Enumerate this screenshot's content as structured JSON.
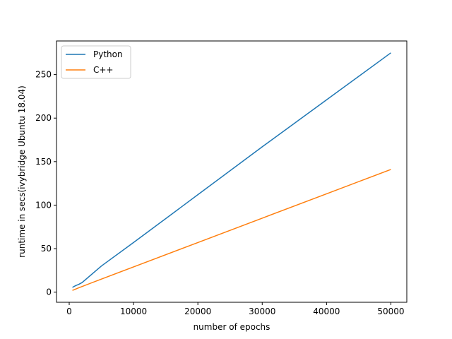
{
  "chart_data": {
    "type": "line",
    "x_label": "number of epochs",
    "y_label": "runtime in secs(ivybridge Ubuntu 18.04)",
    "x": [
      500,
      1000,
      1500,
      2000,
      5000,
      10000,
      20000,
      30000,
      40000,
      50000
    ],
    "series": [
      {
        "name": "Python",
        "color": "#1f77b4",
        "values": [
          5.5,
          7.5,
          9,
          11,
          30,
          57,
          112,
          167,
          221,
          275
        ]
      },
      {
        "name": "C++",
        "color": "#ff7f0e",
        "values": [
          2,
          3.5,
          5,
          6.5,
          15,
          29,
          57,
          85,
          113,
          141
        ]
      }
    ],
    "xlim": [
      -1975,
      52475
    ],
    "xticks": [
      0,
      10000,
      20000,
      30000,
      40000,
      50000
    ],
    "ylim": [
      -11.65,
      288.65
    ],
    "yticks": [
      0,
      50,
      100,
      150,
      200,
      250
    ],
    "legend": "upper left",
    "grid": false
  }
}
